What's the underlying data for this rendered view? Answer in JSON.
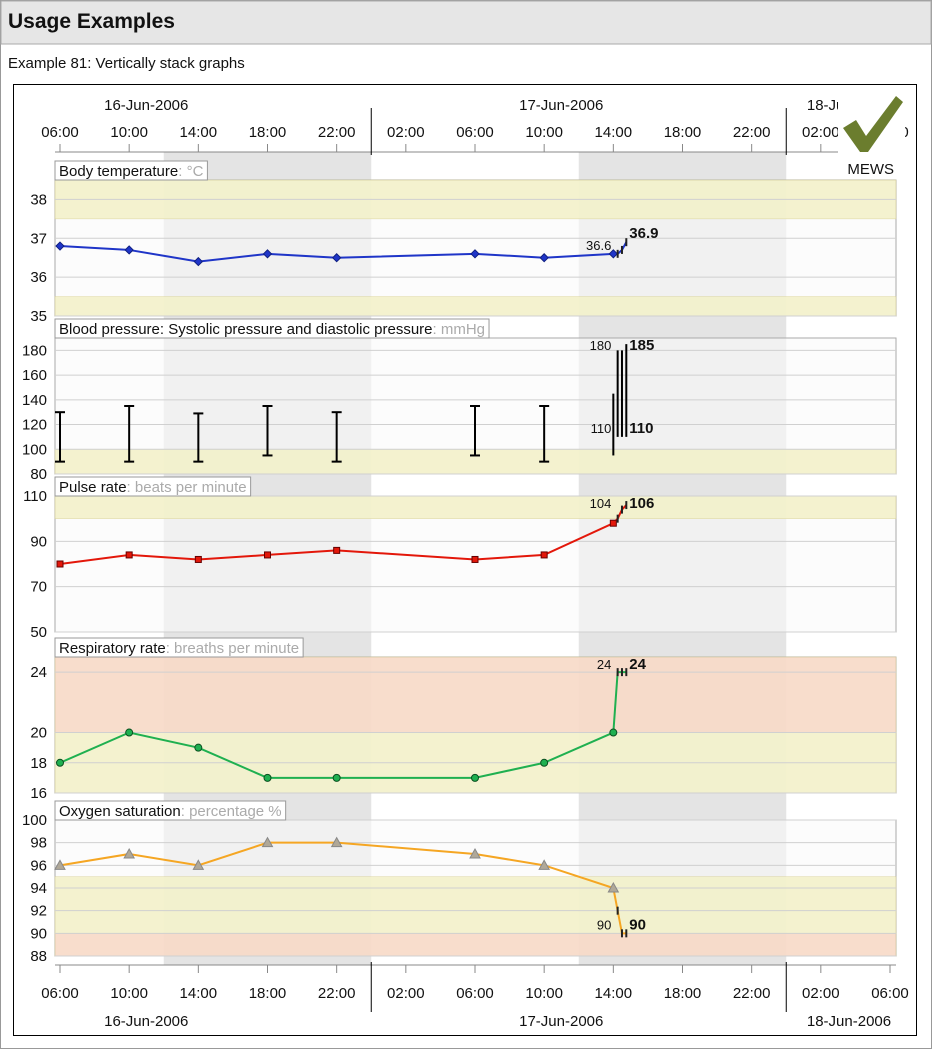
{
  "header": {
    "title": "Usage Examples",
    "subtitle": "Example 81: Vertically stack graphs"
  },
  "badge": "MEWS",
  "time_axis": {
    "xlim": [
      "2006-06-16T06:00",
      "2006-06-18T06:00"
    ],
    "xticks": [
      {
        "value": "2006-06-16T06:00",
        "label": "06:00"
      },
      {
        "value": "2006-06-16T10:00",
        "label": "10:00"
      },
      {
        "value": "2006-06-16T14:00",
        "label": "14:00"
      },
      {
        "value": "2006-06-16T18:00",
        "label": "18:00"
      },
      {
        "value": "2006-06-16T22:00",
        "label": "22:00"
      },
      {
        "value": "2006-06-17T02:00",
        "label": "02:00"
      },
      {
        "value": "2006-06-17T06:00",
        "label": "06:00"
      },
      {
        "value": "2006-06-17T10:00",
        "label": "10:00"
      },
      {
        "value": "2006-06-17T14:00",
        "label": "14:00"
      },
      {
        "value": "2006-06-17T18:00",
        "label": "18:00"
      },
      {
        "value": "2006-06-17T22:00",
        "label": "22:00"
      },
      {
        "value": "2006-06-18T02:00",
        "label": "02:00"
      },
      {
        "value": "2006-06-18T06:00",
        "label": "06:00"
      }
    ],
    "dates": [
      {
        "value": "2006-06-16",
        "label": "16-Jun-2006"
      },
      {
        "value": "2006-06-17",
        "label": "17-Jun-2006"
      },
      {
        "value": "2006-06-18",
        "label": "18-Jun-2006"
      }
    ]
  },
  "chart_data": [
    {
      "type": "line",
      "title": "Body temperature",
      "unit_label": ": °C",
      "marker": "diamond",
      "color": "#1f35c8",
      "x": [
        "2006-06-16T06:00",
        "2006-06-16T10:00",
        "2006-06-16T14:00",
        "2006-06-16T18:00",
        "2006-06-16T22:00",
        "2006-06-17T06:00",
        "2006-06-17T10:00",
        "2006-06-17T14:00",
        "2006-06-17T14:15",
        "2006-06-17T14:30",
        "2006-06-17T14:45"
      ],
      "values": [
        36.8,
        36.7,
        36.4,
        36.6,
        36.5,
        36.6,
        36.5,
        36.6,
        36.6,
        36.7,
        36.9
      ],
      "ylim": [
        35,
        38.5
      ],
      "yticks": [
        35,
        36,
        37,
        38
      ],
      "bands": [
        {
          "from": 35,
          "to": 35.5,
          "color": "#f3f1c8"
        },
        {
          "from": 37.5,
          "to": 38.5,
          "color": "#f3f1c8"
        }
      ],
      "annotations": [
        {
          "value": 36.6,
          "bold": false
        },
        {
          "value": 36.9,
          "bold": true
        }
      ]
    },
    {
      "type": "range",
      "title": "Blood pressure: Systolic pressure and diastolic pressure",
      "unit_label": ": mmHg",
      "x": [
        "2006-06-16T06:00",
        "2006-06-16T10:00",
        "2006-06-16T14:00",
        "2006-06-16T18:00",
        "2006-06-16T22:00",
        "2006-06-17T06:00",
        "2006-06-17T10:00",
        "2006-06-17T14:00",
        "2006-06-17T14:15",
        "2006-06-17T14:30",
        "2006-06-17T14:45"
      ],
      "series": [
        {
          "color": "#000000",
          "values": [
            130,
            135,
            129,
            135,
            130,
            135,
            135,
            145,
            180,
            180,
            185
          ]
        },
        {
          "color": "#000000",
          "values": [
            90,
            90,
            90,
            95,
            90,
            95,
            90,
            95,
            110,
            110,
            110
          ]
        }
      ],
      "ylim": [
        80,
        190
      ],
      "yticks": [
        80,
        100,
        120,
        140,
        160,
        180
      ],
      "bands": [
        {
          "from": 80,
          "to": 100,
          "color": "#f3f1c8"
        }
      ],
      "annotations": [
        {
          "value": 180,
          "bold": false
        },
        {
          "value": 110,
          "bold": false
        },
        {
          "value": 185,
          "bold": true
        },
        {
          "value": 110,
          "bold": true
        }
      ]
    },
    {
      "type": "line",
      "title": "Pulse rate",
      "unit_label": ": beats per minute",
      "marker": "square",
      "color": "#e3170a",
      "x": [
        "2006-06-16T06:00",
        "2006-06-16T10:00",
        "2006-06-16T14:00",
        "2006-06-16T18:00",
        "2006-06-16T22:00",
        "2006-06-17T06:00",
        "2006-06-17T10:00",
        "2006-06-17T14:00",
        "2006-06-17T14:15",
        "2006-06-17T14:30",
        "2006-06-17T14:45"
      ],
      "values": [
        80,
        84,
        82,
        84,
        86,
        82,
        84,
        98,
        100,
        104,
        106
      ],
      "ylim": [
        50,
        110
      ],
      "yticks": [
        50,
        70,
        90,
        110
      ],
      "bands": [
        {
          "from": 100,
          "to": 110,
          "color": "#f3f1c8"
        }
      ],
      "annotations": [
        {
          "value": 104,
          "bold": false
        },
        {
          "value": 106,
          "bold": true
        }
      ]
    },
    {
      "type": "line",
      "title": "Respiratory rate",
      "unit_label": ": breaths per minute",
      "marker": "circle",
      "color": "#1fb050",
      "x": [
        "2006-06-16T06:00",
        "2006-06-16T10:00",
        "2006-06-16T14:00",
        "2006-06-16T18:00",
        "2006-06-16T22:00",
        "2006-06-17T06:00",
        "2006-06-17T10:00",
        "2006-06-17T14:00",
        "2006-06-17T14:15",
        "2006-06-17T14:30",
        "2006-06-17T14:45"
      ],
      "values": [
        18,
        20,
        19,
        17,
        17,
        17,
        18,
        20,
        24,
        24,
        24
      ],
      "ylim": [
        16,
        25
      ],
      "yticks": [
        16,
        18,
        20,
        24
      ],
      "bands": [
        {
          "from": 16,
          "to": 20,
          "color": "#f3f1c8"
        },
        {
          "from": 20,
          "to": 25,
          "color": "#f8d8c4"
        }
      ],
      "annotations": [
        {
          "value": 24,
          "bold": false
        },
        {
          "value": 24,
          "bold": true
        }
      ]
    },
    {
      "type": "line",
      "title": "Oxygen saturation",
      "unit_label": ": percentage %",
      "marker": "triangle",
      "color": "#f5a623",
      "x": [
        "2006-06-16T06:00",
        "2006-06-16T10:00",
        "2006-06-16T14:00",
        "2006-06-16T18:00",
        "2006-06-16T22:00",
        "2006-06-17T06:00",
        "2006-06-17T10:00",
        "2006-06-17T14:00",
        "2006-06-17T14:15",
        "2006-06-17T14:30",
        "2006-06-17T14:45"
      ],
      "values": [
        96,
        97,
        96,
        98,
        98,
        97,
        96,
        94,
        92,
        90,
        90
      ],
      "ylim": [
        88,
        100
      ],
      "yticks": [
        88,
        90,
        92,
        94,
        96,
        98,
        100
      ],
      "bands": [
        {
          "from": 88,
          "to": 90,
          "color": "#f8d8c4"
        },
        {
          "from": 90,
          "to": 95,
          "color": "#f3f1c8"
        }
      ],
      "annotations": [
        {
          "value": 90,
          "bold": false
        },
        {
          "value": 90,
          "bold": true
        }
      ]
    }
  ]
}
